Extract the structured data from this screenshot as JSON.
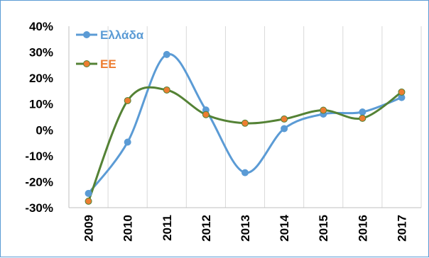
{
  "chart_data": {
    "type": "line",
    "categories": [
      "2009",
      "2010",
      "2011",
      "2012",
      "2013",
      "2014",
      "2015",
      "2016",
      "2017"
    ],
    "series": [
      {
        "name": "Ελλάδα",
        "color": "#5b9bd5",
        "marker_fill": "#5b9bd5",
        "values": [
          -24.5,
          -4.7,
          29.1,
          7.7,
          -16.5,
          0.5,
          6.1,
          6.9,
          12.5
        ]
      },
      {
        "name": "ΕΕ",
        "color": "#548235",
        "marker_fill": "#ed7d31",
        "values": [
          -27.5,
          11.3,
          15.4,
          5.9,
          2.6,
          4.2,
          7.6,
          4.5,
          14.6
        ]
      }
    ],
    "ylim": [
      -30,
      40
    ],
    "yticks": [
      {
        "value": -30,
        "label": "-30%"
      },
      {
        "value": -20,
        "label": "-20%"
      },
      {
        "value": -10,
        "label": "-10%"
      },
      {
        "value": 0,
        "label": "0%"
      },
      {
        "value": 10,
        "label": "10%"
      },
      {
        "value": 20,
        "label": "20%"
      },
      {
        "value": 30,
        "label": "30%"
      },
      {
        "value": 40,
        "label": "40%"
      }
    ],
    "grid": "vertical",
    "smooth": true,
    "legend": "top-left",
    "title": "",
    "xlabel": "",
    "ylabel": ""
  }
}
